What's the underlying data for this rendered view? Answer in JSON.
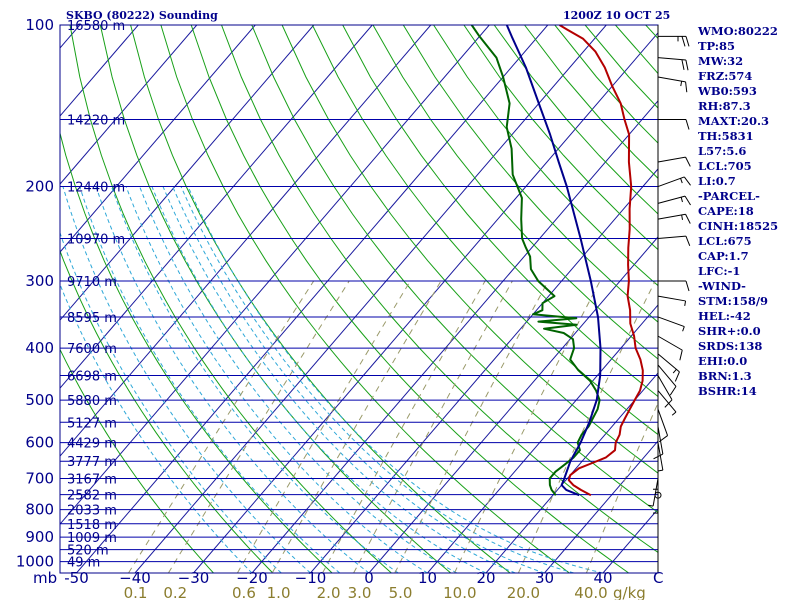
{
  "chart_data": {
    "type": "skew-t",
    "title": "SKBO (80222) Sounding",
    "datetime": "1200Z 10 OCT 25",
    "xlabel": "mb",
    "mixing_ratio_unit": "g/kg",
    "pressure_ticks": [
      100,
      200,
      300,
      400,
      500,
      600,
      700,
      800,
      900,
      1000
    ],
    "temperature_ticks": [
      -50,
      -40,
      -30,
      -20,
      -10,
      0,
      10,
      20,
      30,
      40
    ],
    "temperature_tick_labels": [
      "-50",
      "−40",
      "−30",
      "−20",
      "−10",
      "0",
      "10",
      "20",
      "30",
      "40"
    ],
    "axis_end_label": "C",
    "mixing_ratio_ticks": [
      0.1,
      0.2,
      0.6,
      1.0,
      2.0,
      3.0,
      5.0,
      10.0,
      20.0,
      40.0
    ],
    "mixing_ratio_labels": [
      "0.1",
      "0.2",
      "0.6",
      "1.0",
      "2.0",
      "3.0",
      "5.0",
      "10.0",
      "20.0",
      "40.0"
    ],
    "height_labels": [
      {
        "p": 100,
        "label": "16580 m"
      },
      {
        "p": 150,
        "label": "14220 m"
      },
      {
        "p": 200,
        "label": "12440 m"
      },
      {
        "p": 250,
        "label": "10970 m"
      },
      {
        "p": 300,
        "label": "9710 m"
      },
      {
        "p": 350,
        "label": "8595 m"
      },
      {
        "p": 400,
        "label": "7600 m"
      },
      {
        "p": 450,
        "label": "6698 m"
      },
      {
        "p": 500,
        "label": "5880 m"
      },
      {
        "p": 550,
        "label": "5127 m"
      },
      {
        "p": 600,
        "label": "4429 m"
      },
      {
        "p": 650,
        "label": "3777 m"
      },
      {
        "p": 700,
        "label": "3167 m"
      },
      {
        "p": 750,
        "label": "2582 m"
      },
      {
        "p": 800,
        "label": "2033 m"
      },
      {
        "p": 850,
        "label": "1518 m"
      },
      {
        "p": 900,
        "label": "1009 m"
      },
      {
        "p": 950,
        "label": "520 m"
      },
      {
        "p": 1000,
        "label": "49 m"
      }
    ],
    "series": [
      {
        "name": "Temperature",
        "color": "#b40000",
        "points": [
          [
            752,
            26.5
          ],
          [
            735,
            24.0
          ],
          [
            720,
            22.0
          ],
          [
            705,
            20.5
          ],
          [
            690,
            20.0
          ],
          [
            670,
            20.5
          ],
          [
            655,
            22.0
          ],
          [
            640,
            23.5
          ],
          [
            620,
            24.0
          ],
          [
            600,
            23.0
          ],
          [
            580,
            22.5
          ],
          [
            560,
            21.5
          ],
          [
            540,
            21.0
          ],
          [
            520,
            20.5
          ],
          [
            500,
            20.0
          ],
          [
            480,
            19.5
          ],
          [
            460,
            18.5
          ],
          [
            440,
            17.0
          ],
          [
            420,
            15.0
          ],
          [
            400,
            12.5
          ],
          [
            380,
            10.5
          ],
          [
            360,
            8.0
          ],
          [
            340,
            6.0
          ],
          [
            320,
            3.5
          ],
          [
            300,
            1.5
          ],
          [
            280,
            -1.0
          ],
          [
            260,
            -3.5
          ],
          [
            240,
            -6.0
          ],
          [
            220,
            -9.0
          ],
          [
            200,
            -12.0
          ],
          [
            180,
            -16.0
          ],
          [
            160,
            -20.0
          ],
          [
            150,
            -23.0
          ],
          [
            140,
            -26.0
          ],
          [
            130,
            -30.0
          ],
          [
            120,
            -34.0
          ],
          [
            112,
            -38.0
          ],
          [
            106,
            -42.0
          ],
          [
            102,
            -46.0
          ],
          [
            100,
            -48.0
          ]
        ]
      },
      {
        "name": "Dewpoint",
        "color": "#006400",
        "points": [
          [
            752,
            20.5
          ],
          [
            735,
            19.0
          ],
          [
            720,
            18.0
          ],
          [
            700,
            17.0
          ],
          [
            680,
            17.0
          ],
          [
            660,
            17.5
          ],
          [
            640,
            18.0
          ],
          [
            620,
            18.0
          ],
          [
            600,
            16.5
          ],
          [
            580,
            16.0
          ],
          [
            560,
            16.0
          ],
          [
            540,
            15.5
          ],
          [
            520,
            15.0
          ],
          [
            500,
            14.0
          ],
          [
            480,
            12.0
          ],
          [
            460,
            9.5
          ],
          [
            440,
            6.0
          ],
          [
            420,
            3.0
          ],
          [
            400,
            2.0
          ],
          [
            385,
            0.5
          ],
          [
            375,
            -2.0
          ],
          [
            368,
            -6.0
          ],
          [
            362,
            -1.0
          ],
          [
            357,
            -8.0
          ],
          [
            352,
            -2.0
          ],
          [
            346,
            -10.0
          ],
          [
            340,
            -9.0
          ],
          [
            330,
            -10.0
          ],
          [
            320,
            -9.0
          ],
          [
            300,
            -14.0
          ],
          [
            285,
            -17.0
          ],
          [
            270,
            -19.0
          ],
          [
            260,
            -21.0
          ],
          [
            250,
            -23.0
          ],
          [
            230,
            -26.0
          ],
          [
            210,
            -29.0
          ],
          [
            190,
            -34.0
          ],
          [
            170,
            -38.0
          ],
          [
            155,
            -42.0
          ],
          [
            140,
            -45.0
          ],
          [
            125,
            -50.0
          ],
          [
            115,
            -54.0
          ],
          [
            105,
            -60.0
          ],
          [
            100,
            -63.0
          ]
        ]
      },
      {
        "name": "Parcel",
        "color": "#00008b",
        "points": [
          [
            752,
            24.5
          ],
          [
            735,
            21.5
          ],
          [
            720,
            20.0
          ],
          [
            700,
            19.5
          ],
          [
            650,
            18.0
          ],
          [
            600,
            17.0
          ],
          [
            550,
            15.5
          ],
          [
            500,
            13.5
          ],
          [
            450,
            10.5
          ],
          [
            400,
            6.5
          ],
          [
            350,
            1.5
          ],
          [
            300,
            -5.0
          ],
          [
            250,
            -13.0
          ],
          [
            200,
            -23.0
          ],
          [
            180,
            -28.0
          ],
          [
            160,
            -33.5
          ],
          [
            140,
            -40.0
          ],
          [
            120,
            -47.5
          ],
          [
            105,
            -54.5
          ],
          [
            100,
            -57.0
          ]
        ]
      }
    ],
    "wind_profile": [
      {
        "p": 105,
        "dir": 90,
        "spd": 25
      },
      {
        "p": 115,
        "dir": 95,
        "spd": 20
      },
      {
        "p": 125,
        "dir": 100,
        "spd": 15
      },
      {
        "p": 150,
        "dir": 90,
        "spd": 10
      },
      {
        "p": 180,
        "dir": 80,
        "spd": 10
      },
      {
        "p": 200,
        "dir": 70,
        "spd": 15
      },
      {
        "p": 215,
        "dir": 75,
        "spd": 15
      },
      {
        "p": 230,
        "dir": 80,
        "spd": 15
      },
      {
        "p": 250,
        "dir": 85,
        "spd": 10
      },
      {
        "p": 300,
        "dir": 90,
        "spd": 10
      },
      {
        "p": 320,
        "dir": 100,
        "spd": 5
      },
      {
        "p": 350,
        "dir": 110,
        "spd": 5
      },
      {
        "p": 380,
        "dir": 120,
        "spd": 10
      },
      {
        "p": 410,
        "dir": 130,
        "spd": 15
      },
      {
        "p": 430,
        "dir": 140,
        "spd": 10
      },
      {
        "p": 450,
        "dir": 150,
        "spd": 10
      },
      {
        "p": 480,
        "dir": 140,
        "spd": 5
      },
      {
        "p": 520,
        "dir": 160,
        "spd": 10
      },
      {
        "p": 560,
        "dir": 170,
        "spd": 10
      },
      {
        "p": 600,
        "dir": 170,
        "spd": 5
      },
      {
        "p": 650,
        "dir": 180,
        "spd": 5
      },
      {
        "p": 700,
        "dir": 190,
        "spd": 5
      },
      {
        "p": 720,
        "dir": 180,
        "spd": 5
      },
      {
        "p": 752,
        "dir": 0,
        "spd": 0
      }
    ]
  },
  "indices": [
    "WMO:80222",
    "TP:85",
    "MW:32",
    "FRZ:574",
    "WB0:593",
    "RH:87.3",
    "MAXT:20.3",
    "TH:5831",
    "L57:5.6",
    "LCL:705",
    "LI:0.7",
    "-PARCEL-",
    "CAPE:18",
    "CINH:18525",
    "LCL:675",
    "CAP:1.7",
    "LFC:-1",
    "-WIND-",
    "STM:158/9",
    "HEL:-42",
    "SHR+:0.0",
    "SRDS:138",
    "EHI:0.0",
    "BRN:1.3",
    "BSHR:14"
  ],
  "colors": {
    "frame": "#00008b",
    "isobar": "#0000aa",
    "isotherm": "#1a1a9e",
    "dry_adiabat": "#18a018",
    "moist_adiabat": "#2fa8d8",
    "mixing_ratio": "#9a9a6a",
    "ticklabel": "#00008b",
    "mixlabel": "#8b7d2e",
    "wind": "#000000"
  }
}
